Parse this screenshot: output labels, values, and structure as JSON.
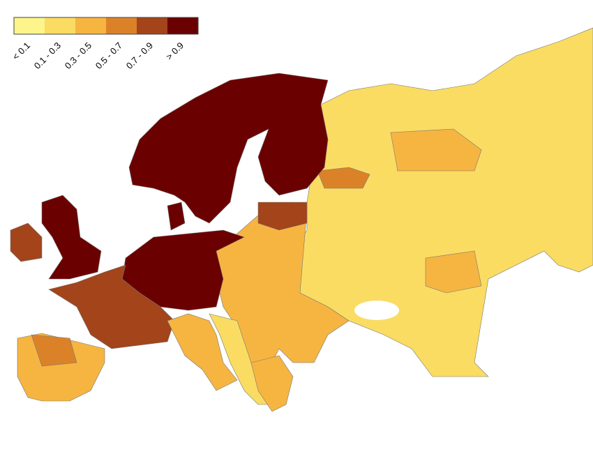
{
  "legend": {
    "labels": [
      "< 0.1",
      "0.1 - 0.3",
      "0.3 - 0.5",
      "0.5 - 0.7",
      "0.7 - 0.9",
      "> 0.9"
    ],
    "colors": [
      "#fdf58b",
      "#fadc62",
      "#f6b541",
      "#db8228",
      "#a3441a",
      "#6b0000"
    ]
  }
}
